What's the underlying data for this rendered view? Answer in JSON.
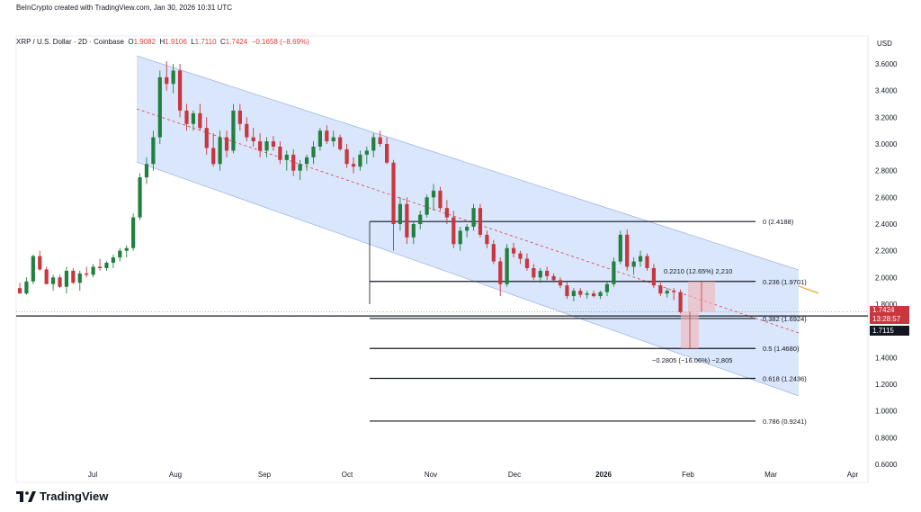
{
  "header": {
    "created": "BeInCrypto created with TradingView.com, Jan 30, 2026 10:31 UTC"
  },
  "symbol": {
    "name": "XRP / U.S. Dollar · 2D · Coinbase",
    "open_label": "O",
    "open": "1.9082",
    "high_label": "H",
    "high": "1.9106",
    "low_label": "L",
    "low": "1.7110",
    "close_label": "C",
    "close": "1.7424",
    "change": "−0.1658 (−8.69%)"
  },
  "currency": "USD",
  "footer": {
    "brand": "TradingView"
  },
  "colors": {
    "up": "#22803f",
    "down": "#c8363e",
    "channel": "#c9dbfa",
    "price_tag": "#c8363e",
    "low_tag": "#131722"
  },
  "chart_data": {
    "type": "candlestick",
    "y_axis": {
      "min": 0.55,
      "max": 3.7,
      "ticks": [
        "3.6000",
        "3.4000",
        "3.2000",
        "3.0000",
        "2.8000",
        "2.6000",
        "2.4000",
        "2.2000",
        "2.0000",
        "1.8000",
        "1.4000",
        "1.2000",
        "1.0000",
        "0.8000",
        "0.6000"
      ]
    },
    "x_axis": {
      "ticks": [
        "Jul",
        "Aug",
        "Sep",
        "Oct",
        "Nov",
        "Dec",
        "2026",
        "Feb",
        "Mar",
        "Apr"
      ]
    },
    "fib_levels": [
      {
        "ratio": 0,
        "price": 2.4188,
        "label": "0 (2.4188)"
      },
      {
        "ratio": 0.236,
        "price": 1.9701,
        "label": "0.236 (1.9701)"
      },
      {
        "ratio": 0.382,
        "price": 1.6924,
        "label": "0.382 (1.6924)"
      },
      {
        "ratio": 0.5,
        "price": 1.468,
        "label": "0.5 (1.4680)"
      },
      {
        "ratio": 0.618,
        "price": 1.2436,
        "label": "0.618 (1.2436)"
      },
      {
        "ratio": 0.786,
        "price": 0.9241,
        "label": "0.786 (0.9241)"
      }
    ],
    "current_price": {
      "value": 1.7424,
      "label": "1.7424",
      "countdown": "13:28:57"
    },
    "low_price": {
      "value": 1.7115,
      "label": "1.7115"
    },
    "annotations": {
      "up_measure": "0.2210 (12.65%) 2,210",
      "down_measure": "−0.2805 (−16.06%) −2,805"
    },
    "candles": [
      [
        1.92,
        1.96,
        1.88,
        1.88
      ],
      [
        1.88,
        2.0,
        1.87,
        1.97
      ],
      [
        1.97,
        2.17,
        1.95,
        2.16
      ],
      [
        2.16,
        2.2,
        2.05,
        2.06
      ],
      [
        2.06,
        2.08,
        1.95,
        1.95
      ],
      [
        1.95,
        2.02,
        1.9,
        2.0
      ],
      [
        2.0,
        2.02,
        1.92,
        1.93
      ],
      [
        1.93,
        2.08,
        1.88,
        2.05
      ],
      [
        2.05,
        2.07,
        1.95,
        1.96
      ],
      [
        1.96,
        2.05,
        1.9,
        2.03
      ],
      [
        2.03,
        2.08,
        2.0,
        2.02
      ],
      [
        2.02,
        2.1,
        2.0,
        2.08
      ],
      [
        2.08,
        2.14,
        2.05,
        2.07
      ],
      [
        2.07,
        2.12,
        2.05,
        2.11
      ],
      [
        2.11,
        2.17,
        2.07,
        2.15
      ],
      [
        2.15,
        2.22,
        2.12,
        2.2
      ],
      [
        2.2,
        2.24,
        2.15,
        2.22
      ],
      [
        2.22,
        2.48,
        2.2,
        2.45
      ],
      [
        2.45,
        2.78,
        2.43,
        2.75
      ],
      [
        2.75,
        2.9,
        2.7,
        2.85
      ],
      [
        2.85,
        3.1,
        2.8,
        3.05
      ],
      [
        3.05,
        3.55,
        3.0,
        3.5
      ],
      [
        3.5,
        3.62,
        3.4,
        3.45
      ],
      [
        3.45,
        3.6,
        3.38,
        3.55
      ],
      [
        3.55,
        3.6,
        3.2,
        3.25
      ],
      [
        3.25,
        3.3,
        3.1,
        3.15
      ],
      [
        3.15,
        3.25,
        3.1,
        3.23
      ],
      [
        3.23,
        3.3,
        3.1,
        3.12
      ],
      [
        3.12,
        3.2,
        2.92,
        2.97
      ],
      [
        2.97,
        3.08,
        2.83,
        2.85
      ],
      [
        2.85,
        3.1,
        2.8,
        3.05
      ],
      [
        3.05,
        3.1,
        2.9,
        2.95
      ],
      [
        2.95,
        3.3,
        2.93,
        3.25
      ],
      [
        3.25,
        3.3,
        3.1,
        3.15
      ],
      [
        3.15,
        3.2,
        3.02,
        3.05
      ],
      [
        3.05,
        3.12,
        2.98,
        3.02
      ],
      [
        3.02,
        3.08,
        2.9,
        2.95
      ],
      [
        2.95,
        3.05,
        2.9,
        3.02
      ],
      [
        3.02,
        3.06,
        2.95,
        2.98
      ],
      [
        2.98,
        3.02,
        2.85,
        2.88
      ],
      [
        2.88,
        2.95,
        2.8,
        2.92
      ],
      [
        2.92,
        2.96,
        2.76,
        2.8
      ],
      [
        2.8,
        2.88,
        2.73,
        2.85
      ],
      [
        2.85,
        2.92,
        2.8,
        2.9
      ],
      [
        2.9,
        3.02,
        2.85,
        2.98
      ],
      [
        2.98,
        3.12,
        2.95,
        3.1
      ],
      [
        3.1,
        3.14,
        3.0,
        3.02
      ],
      [
        3.02,
        3.1,
        2.98,
        3.05
      ],
      [
        3.05,
        3.07,
        2.95,
        2.96
      ],
      [
        2.96,
        3.0,
        2.82,
        2.85
      ],
      [
        2.85,
        2.9,
        2.78,
        2.83
      ],
      [
        2.83,
        2.95,
        2.8,
        2.92
      ],
      [
        2.92,
        2.98,
        2.85,
        2.95
      ],
      [
        2.95,
        3.08,
        2.9,
        3.05
      ],
      [
        3.05,
        3.1,
        2.98,
        3.0
      ],
      [
        3.0,
        3.05,
        2.85,
        2.86
      ],
      [
        2.86,
        2.88,
        2.2,
        2.4
      ],
      [
        2.4,
        2.6,
        2.35,
        2.55
      ],
      [
        2.55,
        2.6,
        2.25,
        2.3
      ],
      [
        2.3,
        2.42,
        2.25,
        2.4
      ],
      [
        2.4,
        2.5,
        2.36,
        2.47
      ],
      [
        2.47,
        2.62,
        2.45,
        2.6
      ],
      [
        2.6,
        2.7,
        2.5,
        2.65
      ],
      [
        2.65,
        2.68,
        2.5,
        2.52
      ],
      [
        2.52,
        2.58,
        2.4,
        2.45
      ],
      [
        2.45,
        2.5,
        2.22,
        2.25
      ],
      [
        2.25,
        2.38,
        2.2,
        2.35
      ],
      [
        2.35,
        2.4,
        2.3,
        2.38
      ],
      [
        2.38,
        2.55,
        2.35,
        2.52
      ],
      [
        2.52,
        2.55,
        2.3,
        2.32
      ],
      [
        2.32,
        2.35,
        2.22,
        2.25
      ],
      [
        2.25,
        2.28,
        2.1,
        2.12
      ],
      [
        2.12,
        2.15,
        1.86,
        1.95
      ],
      [
        1.95,
        2.25,
        1.93,
        2.22
      ],
      [
        2.22,
        2.26,
        2.15,
        2.18
      ],
      [
        2.18,
        2.2,
        2.1,
        2.14
      ],
      [
        2.14,
        2.18,
        2.05,
        2.07
      ],
      [
        2.07,
        2.1,
        1.98,
        2.0
      ],
      [
        2.0,
        2.07,
        1.96,
        2.05
      ],
      [
        2.05,
        2.08,
        1.98,
        2.01
      ],
      [
        2.01,
        2.03,
        1.96,
        1.98
      ],
      [
        1.98,
        2.0,
        1.92,
        1.94
      ],
      [
        1.94,
        1.97,
        1.84,
        1.86
      ],
      [
        1.86,
        1.92,
        1.82,
        1.9
      ],
      [
        1.9,
        1.92,
        1.85,
        1.87
      ],
      [
        1.87,
        1.9,
        1.84,
        1.88
      ],
      [
        1.88,
        1.9,
        1.85,
        1.86
      ],
      [
        1.86,
        1.9,
        1.84,
        1.89
      ],
      [
        1.89,
        1.97,
        1.86,
        1.95
      ],
      [
        1.95,
        2.15,
        1.93,
        2.12
      ],
      [
        2.12,
        2.35,
        2.1,
        2.32
      ],
      [
        2.32,
        2.36,
        2.05,
        2.08
      ],
      [
        2.08,
        2.15,
        2.02,
        2.12
      ],
      [
        2.12,
        2.2,
        2.08,
        2.16
      ],
      [
        2.16,
        2.18,
        2.05,
        2.07
      ],
      [
        2.07,
        2.1,
        1.92,
        1.94
      ],
      [
        1.94,
        1.96,
        1.86,
        1.88
      ],
      [
        1.88,
        1.92,
        1.85,
        1.9
      ],
      [
        1.9,
        1.92,
        1.83,
        1.89
      ],
      [
        1.89,
        1.91,
        1.73,
        1.74
      ]
    ]
  }
}
